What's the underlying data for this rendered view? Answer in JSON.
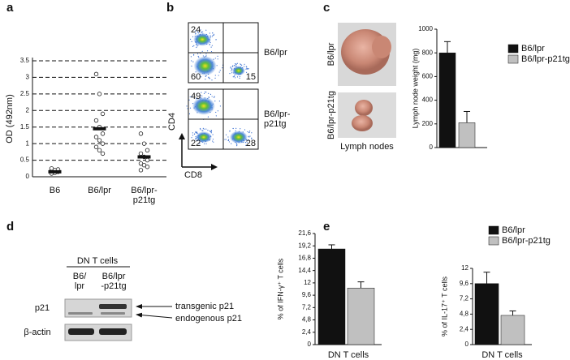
{
  "panel_labels": [
    "a",
    "b",
    "c",
    "d",
    "e"
  ],
  "chart_data": [
    {
      "type": "dot",
      "ylabel": "OD (492nm)",
      "categories": [
        "B6",
        "B6/lpr",
        "B6/lpr-p21tg"
      ],
      "points": [
        [
          0.1,
          0.12,
          0.15,
          0.18,
          0.2,
          0.22,
          0.25
        ],
        [
          3.1,
          2.5,
          1.9,
          1.7,
          1.5,
          1.3,
          1.2,
          1.1,
          1.0,
          0.9,
          0.8,
          0.7
        ],
        [
          1.3,
          1.0,
          0.8,
          0.7,
          0.6,
          0.5,
          0.4,
          0.35,
          0.3,
          0.2
        ]
      ],
      "means": [
        0.15,
        1.45,
        0.6
      ],
      "ylim": [
        0,
        3.5
      ],
      "yticks": [
        0,
        0.5,
        1,
        1.5,
        2,
        2.5,
        3,
        3.5
      ],
      "grid": true
    },
    {
      "type": "bar",
      "ylabel": "Lymph node weight (mg)",
      "series": [
        {
          "name": "B6/lpr",
          "color": "#111111",
          "values": [
            800
          ],
          "errors": [
            95
          ]
        },
        {
          "name": "B6/lpr-p21tg",
          "color": "#c0c0c0",
          "values": [
            210
          ],
          "errors": [
            95
          ]
        }
      ],
      "ylim": [
        0,
        1000
      ],
      "yticks": [
        0,
        200,
        400,
        600,
        800,
        1000
      ],
      "legend": true
    },
    {
      "type": "bar",
      "ylabel": "% of IFN-γ⁺ T cells",
      "xlabel": "DN T cells",
      "series": [
        {
          "color": "#111111",
          "values": [
            18.6
          ],
          "errors": [
            0.8
          ]
        },
        {
          "color": "#c0c0c0",
          "values": [
            11
          ],
          "errors": [
            1.2
          ]
        }
      ],
      "ylim": [
        0,
        21.6
      ],
      "yticks": [
        0,
        {
          "value": 2.4,
          "label": "2,4"
        },
        {
          "value": 4.8,
          "label": "4,8"
        },
        {
          "value": 7.2,
          "label": "7,2"
        },
        {
          "value": 9.6,
          "label": "9,6"
        },
        12,
        {
          "value": 14.4,
          "label": "14,4"
        },
        {
          "value": 16.8,
          "label": "16,8"
        },
        {
          "value": 19.2,
          "label": "19,2"
        },
        {
          "value": 21.6,
          "label": "21,6"
        }
      ],
      "legend": false
    },
    {
      "type": "bar",
      "ylabel": "% of IL-17⁺ T cells",
      "xlabel": "DN T cells",
      "series": [
        {
          "name": "B6/lpr",
          "color": "#111111",
          "values": [
            9.6
          ],
          "errors": [
            1.8
          ]
        },
        {
          "name": "B6/lpr-p21tg",
          "color": "#c0c0c0",
          "values": [
            4.6
          ],
          "errors": [
            0.7
          ]
        }
      ],
      "ylim": [
        0,
        12
      ],
      "yticks": [
        0,
        {
          "value": 2.4,
          "label": "2,4"
        },
        {
          "value": 4.8,
          "label": "4,8"
        },
        {
          "value": 7.2,
          "label": "7,2"
        },
        {
          "value": 9.6,
          "label": "9,6"
        },
        12
      ],
      "legend": true
    }
  ],
  "flow": {
    "labels": [
      "B6/lpr",
      "B6/lpr-p21tg"
    ],
    "quadrants": [
      [
        24,
        60,
        15
      ],
      [
        49,
        22,
        28
      ]
    ],
    "x_axis": "CD8",
    "y_axis": "CD4"
  },
  "photos": {
    "labels": [
      "B6/lpr",
      "B6/lpr-p21tg"
    ],
    "caption": "Lymph nodes"
  },
  "blot": {
    "header": "DN T cells",
    "lanes": [
      "B6/lpr",
      "B6/lpr-p21tg"
    ],
    "rows": [
      "p21",
      "β-actin"
    ],
    "arrows": [
      "transgenic p21",
      "endogenous p21"
    ]
  }
}
